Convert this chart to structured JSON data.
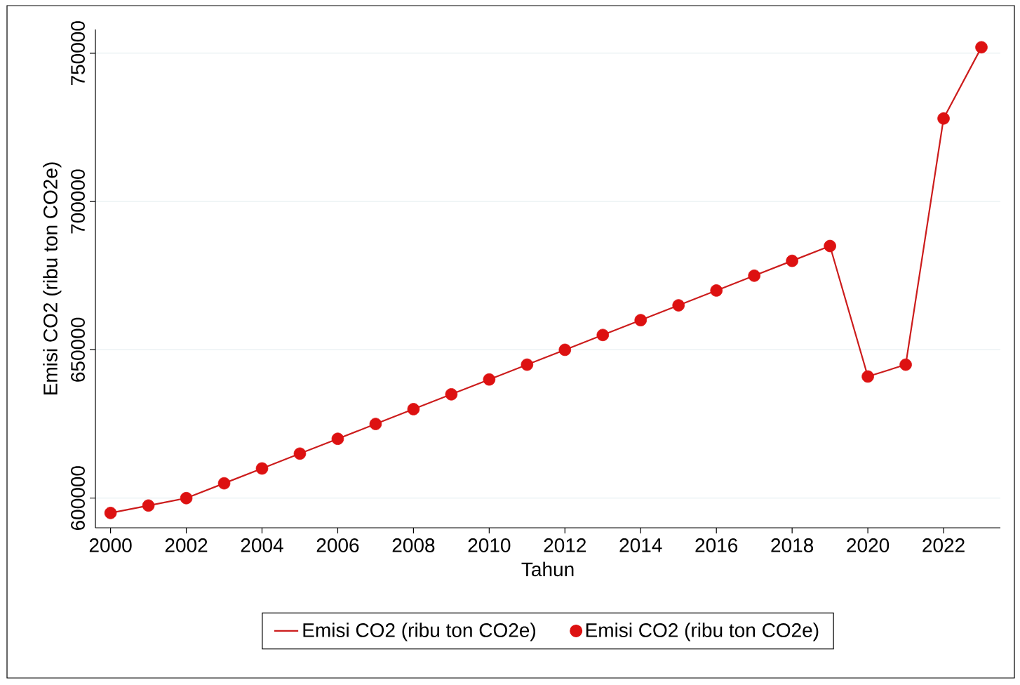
{
  "chart_data": {
    "type": "line",
    "xlabel": "Tahun",
    "ylabel": "Emisi CO2 (ribu ton CO2e)",
    "x": [
      2000,
      2001,
      2002,
      2003,
      2004,
      2005,
      2006,
      2007,
      2008,
      2009,
      2010,
      2011,
      2012,
      2013,
      2014,
      2015,
      2016,
      2017,
      2018,
      2019,
      2020,
      2021,
      2022,
      2023
    ],
    "series": [
      {
        "name": "Emisi CO2 (ribu ton CO2e)",
        "color": "#cc1c1c",
        "marker": "none",
        "values": [
          595000,
          597500,
          600000,
          605000,
          610000,
          615000,
          620000,
          625000,
          630000,
          635000,
          640000,
          645000,
          650000,
          655000,
          660000,
          665000,
          670000,
          675000,
          680000,
          685000,
          641000,
          645000,
          728000,
          752000
        ]
      },
      {
        "name": "Emisi CO2 (ribu ton CO2e)",
        "type": "scatter",
        "color": "#dd1111",
        "marker": "circle",
        "values": [
          595000,
          597500,
          600000,
          605000,
          610000,
          615000,
          620000,
          625000,
          630000,
          635000,
          640000,
          645000,
          650000,
          655000,
          660000,
          665000,
          670000,
          675000,
          680000,
          685000,
          641000,
          645000,
          728000,
          752000
        ]
      }
    ],
    "xlim": [
      1999.6,
      2023.5
    ],
    "ylim": [
      590000,
      758000
    ],
    "xticks": [
      2000,
      2002,
      2004,
      2006,
      2008,
      2010,
      2012,
      2014,
      2016,
      2018,
      2020,
      2022
    ],
    "yticks": [
      600000,
      650000,
      700000,
      750000
    ],
    "grid": "y",
    "legend": "bottom"
  }
}
